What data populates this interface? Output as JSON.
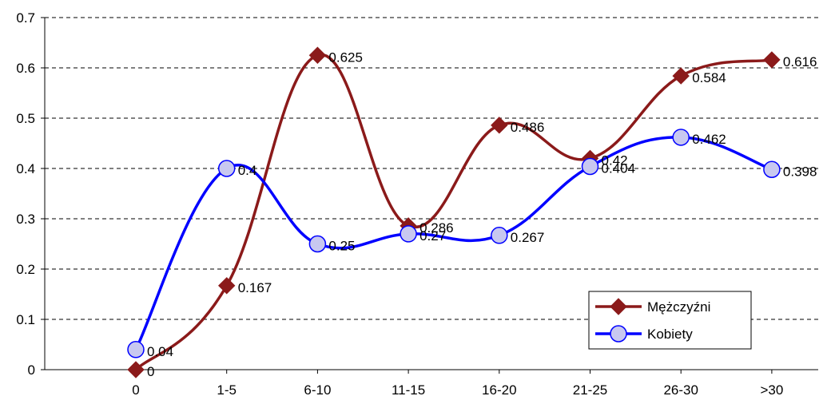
{
  "chart_data": {
    "type": "line",
    "title": "",
    "xlabel": "",
    "ylabel": "",
    "categories": [
      "0",
      "1-5",
      "6-10",
      "11-15",
      "16-20",
      "21-25",
      "26-30",
      ">30"
    ],
    "ylim": [
      0,
      0.7
    ],
    "y_ticks": [
      "0",
      "0.1",
      "0.2",
      "0.3",
      "0.4",
      "0.5",
      "0.6",
      "0.7"
    ],
    "grid": "dashed horizontal",
    "legend_position": "bottom-right",
    "series": [
      {
        "name": "Mężczyźni",
        "values": [
          0,
          0.167,
          0.625,
          0.286,
          0.486,
          0.42,
          0.584,
          0.616
        ],
        "labels": [
          "0",
          "0.167",
          "0.625",
          "0.286",
          "0.486",
          "0.42",
          "0.584",
          "0.616"
        ],
        "color": "#8b1a1a",
        "marker": "diamond"
      },
      {
        "name": "Kobiety",
        "values": [
          0.04,
          0.4,
          0.25,
          0.27,
          0.267,
          0.404,
          0.462,
          0.398
        ],
        "labels": [
          "0.04",
          "0.4",
          "0.25",
          "0.27",
          "0.267",
          "0.404",
          "0.462",
          "0.398"
        ],
        "color": "#0000ff",
        "marker": "circle",
        "marker_fill": "#c8c8f0"
      }
    ]
  }
}
